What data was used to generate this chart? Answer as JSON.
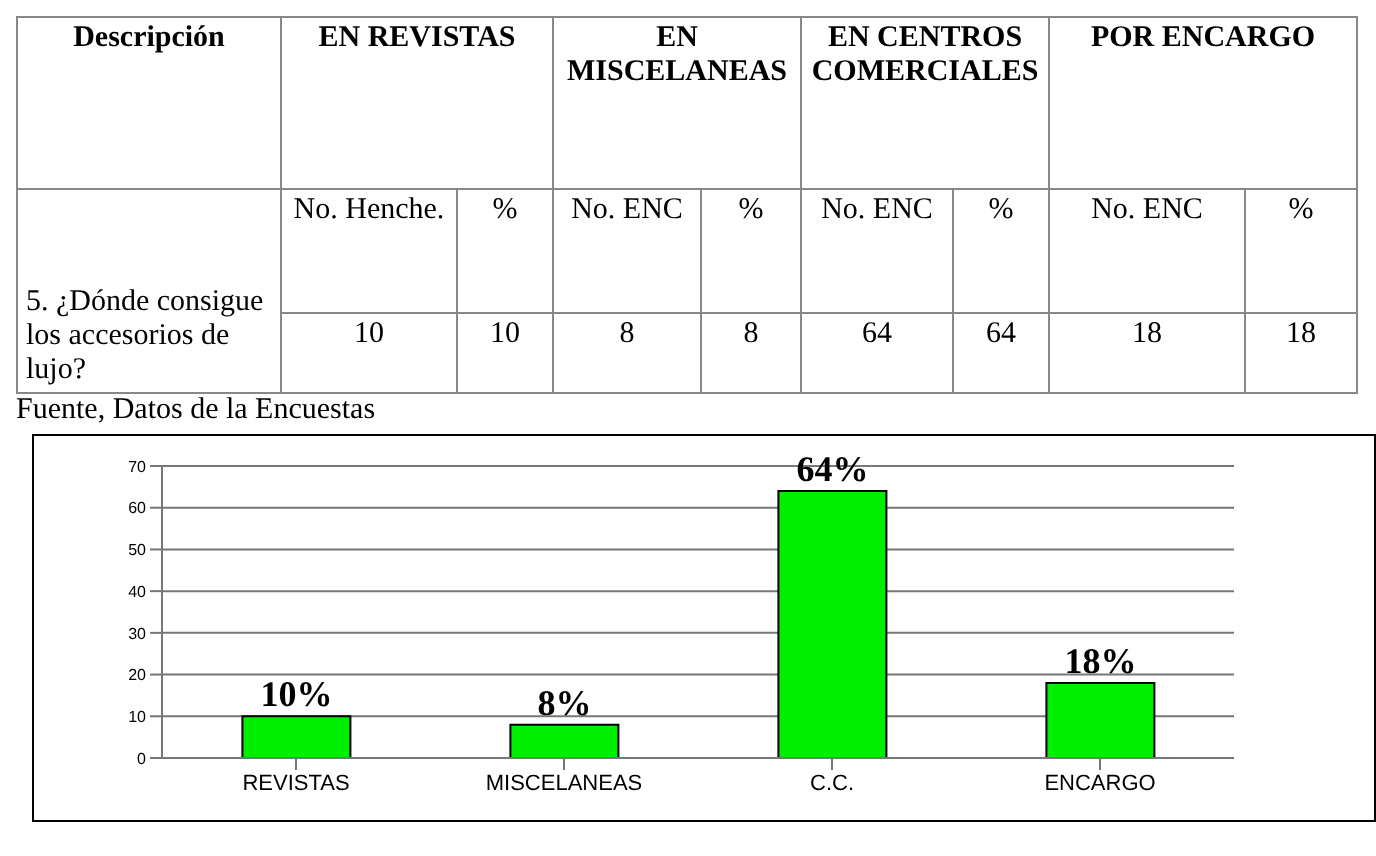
{
  "chart_data": [
    {
      "type": "other",
      "annotations": [
        "Descripción",
        "EN REVISTAS",
        "EN MISCELANEAS",
        "EN CENTROS COMERCIALES",
        "POR ENCARGO",
        "5. ¿Dónde consigue los accesorios de lujo?",
        "No. Henche.",
        "%",
        "No. ENC",
        "%",
        "No. ENC",
        "%",
        "No. ENC",
        "%",
        "10",
        "10",
        "8",
        "8",
        "64",
        "64",
        "18",
        "18",
        "Fuente, Datos de la Encuestas"
      ]
    },
    {
      "type": "bar",
      "categories": [
        "REVISTAS",
        "MISCELANEAS",
        "C.C.",
        "ENCARGO"
      ],
      "values": [
        10,
        8,
        64,
        18
      ],
      "color": "#00ee00",
      "value_labels": [
        "10%",
        "8%",
        "64%",
        "18%"
      ],
      "ylim": [
        0,
        70
      ],
      "yticks": [
        0,
        10,
        20,
        30,
        40,
        50,
        60,
        70
      ],
      "grid": "y"
    }
  ]
}
